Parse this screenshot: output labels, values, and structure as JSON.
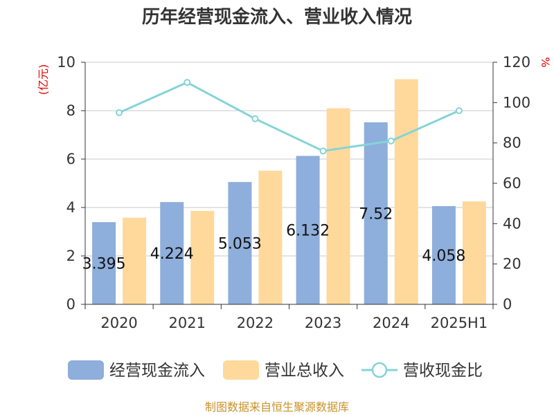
{
  "chart_data": {
    "type": "bar",
    "title": "历年经营现金流入、营业收入情况",
    "categories": [
      "2020",
      "2021",
      "2022",
      "2023",
      "2024",
      "2025H1"
    ],
    "series": [
      {
        "name": "经营现金流入",
        "kind": "bar",
        "axis": "left",
        "color": "#8eaedb",
        "values": [
          3.395,
          4.224,
          5.053,
          6.132,
          7.52,
          4.058
        ],
        "labels": [
          "3.395",
          "4.224",
          "5.053",
          "6.132",
          "7.52",
          "4.058"
        ]
      },
      {
        "name": "营业总收入",
        "kind": "bar",
        "axis": "left",
        "color": "#fed99b",
        "values": [
          3.58,
          3.86,
          5.52,
          8.1,
          9.3,
          4.25
        ]
      },
      {
        "name": "营收现金比",
        "kind": "line",
        "axis": "right",
        "color": "#85d3d7",
        "values": [
          95,
          110,
          92,
          76,
          81,
          96
        ]
      }
    ],
    "y_left": {
      "unit": "(亿元)",
      "ylim": [
        0,
        10
      ],
      "ticks": [
        "0",
        "2",
        "4",
        "6",
        "8",
        "10"
      ]
    },
    "y_right": {
      "unit": "%",
      "ylim": [
        0,
        120
      ],
      "ticks": [
        "0",
        "20",
        "40",
        "60",
        "80",
        "100",
        "120"
      ]
    },
    "grid": true,
    "legend": "bottom"
  },
  "source": "制图数据来自恒生聚源数据库"
}
